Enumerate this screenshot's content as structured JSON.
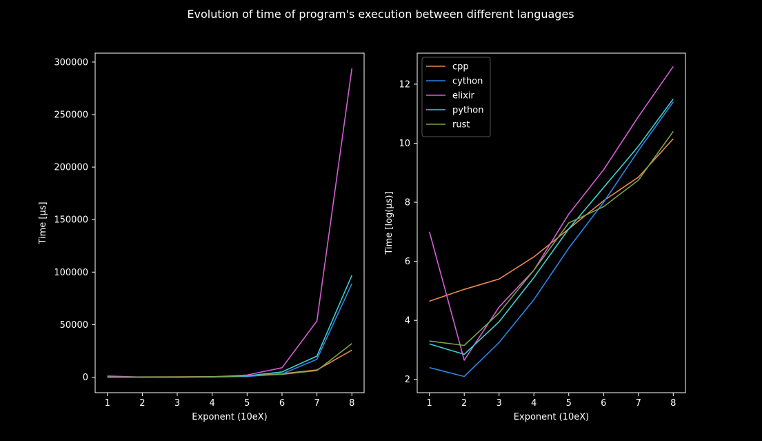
{
  "figure": {
    "title": "Evolution of time of program's execution between different languages",
    "background": "#000000",
    "foreground": "#ffffff"
  },
  "chart_data": [
    {
      "type": "line",
      "xlabel": "Exponent (10eX)",
      "ylabel": "Time [µs]",
      "x": [
        1,
        2,
        3,
        4,
        5,
        6,
        7,
        8
      ],
      "xticks": [
        1,
        2,
        3,
        4,
        5,
        6,
        7,
        8
      ],
      "xlim": [
        0.65,
        8.35
      ],
      "ylim": [
        -14800,
        308500
      ],
      "yticks": [
        0,
        50000,
        100000,
        150000,
        200000,
        250000,
        300000
      ],
      "legend": "none",
      "grid": false,
      "series": [
        {
          "name": "cpp",
          "color": "#e8894f",
          "values": [
            105,
            155,
            225,
            470,
            1200,
            3200,
            6900,
            25700
          ]
        },
        {
          "name": "cython",
          "color": "#2b86e8",
          "values": [
            11,
            8,
            26,
            110,
            620,
            3000,
            17000,
            89000
          ]
        },
        {
          "name": "elixir",
          "color": "#d35fd3",
          "values": [
            1100,
            14,
            85,
            300,
            2000,
            9000,
            53500,
            294000
          ]
        },
        {
          "name": "python",
          "color": "#3fd0d0",
          "values": [
            24,
            17,
            52,
            230,
            1200,
            5000,
            20000,
            97000
          ]
        },
        {
          "name": "rust",
          "color": "#79a34a",
          "values": [
            27,
            23,
            70,
            290,
            1450,
            2600,
            6200,
            32000
          ]
        }
      ]
    },
    {
      "type": "line",
      "xlabel": "Exponent (10eX)",
      "ylabel": "Time [log(µs)]",
      "x": [
        1,
        2,
        3,
        4,
        5,
        6,
        7,
        8
      ],
      "xticks": [
        1,
        2,
        3,
        4,
        5,
        6,
        7,
        8
      ],
      "xlim": [
        0.65,
        8.35
      ],
      "ylim": [
        1.55,
        13.05
      ],
      "yticks": [
        2,
        4,
        6,
        8,
        10,
        12
      ],
      "legend": "upper-left",
      "grid": false,
      "series": [
        {
          "name": "cpp",
          "color": "#e8894f",
          "values": [
            4.65,
            5.05,
            5.4,
            6.15,
            7.1,
            8.05,
            8.85,
            10.15
          ]
        },
        {
          "name": "cython",
          "color": "#2b86e8",
          "values": [
            2.4,
            2.1,
            3.25,
            4.7,
            6.45,
            8.0,
            9.75,
            11.4
          ]
        },
        {
          "name": "elixir",
          "color": "#d35fd3",
          "values": [
            7.0,
            2.65,
            4.45,
            5.7,
            7.6,
            9.1,
            10.9,
            12.6
          ]
        },
        {
          "name": "python",
          "color": "#3fd0d0",
          "values": [
            3.2,
            2.85,
            3.95,
            5.45,
            7.1,
            8.5,
            9.9,
            11.5
          ]
        },
        {
          "name": "rust",
          "color": "#79a34a",
          "values": [
            3.3,
            3.15,
            4.25,
            5.7,
            7.3,
            7.85,
            8.75,
            10.4
          ]
        }
      ]
    }
  ]
}
